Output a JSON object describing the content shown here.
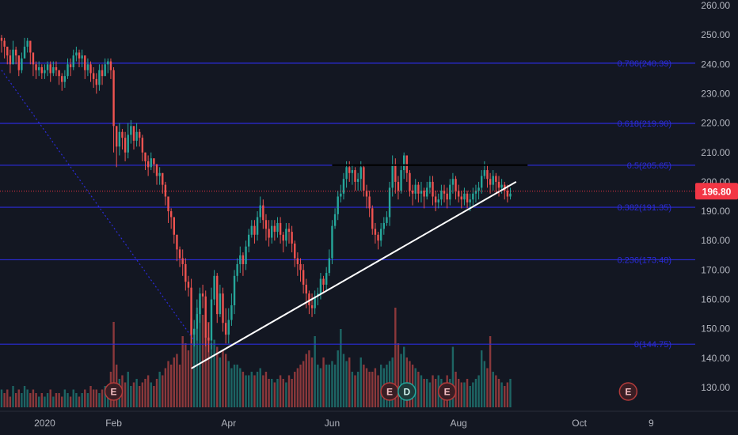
{
  "chart_data": {
    "type": "candlestick",
    "y_axis": {
      "ticks": [
        "260.00",
        "250.00",
        "240.00",
        "230.00",
        "220.00",
        "210.00",
        "200.00",
        "190.00",
        "180.00",
        "170.00",
        "160.00",
        "150.00",
        "140.00",
        "130.00"
      ],
      "range": [
        125,
        263
      ]
    },
    "x_axis": {
      "labels": [
        {
          "text": "2020",
          "bar": 15
        },
        {
          "text": "Feb",
          "bar": 39
        },
        {
          "text": "Apr",
          "bar": 79
        },
        {
          "text": "Jun",
          "bar": 115
        },
        {
          "text": "Aug",
          "bar": 159
        },
        {
          "text": "Oct",
          "bar": 201
        },
        {
          "text": "9",
          "bar": 226
        }
      ]
    },
    "last_price": "196.80",
    "last_price_value": 196.8,
    "fib_levels": [
      {
        "label": "0.786(240.39)",
        "value": 240.39
      },
      {
        "label": "0.618(219.90)",
        "value": 219.9
      },
      {
        "label": "0.5(205.65)",
        "value": 205.65
      },
      {
        "label": "0.382(191.35)",
        "value": 191.35
      },
      {
        "label": "0.236(173.48)",
        "value": 173.48
      },
      {
        "label": "0(144.75)",
        "value": 144.75
      }
    ],
    "earnings_markers": [
      {
        "text": "E",
        "kind": "earnings",
        "bar": 39
      },
      {
        "text": "E",
        "kind": "earnings",
        "bar": 135
      },
      {
        "text": "D",
        "kind": "dividend",
        "bar": 141
      },
      {
        "text": "E",
        "kind": "earnings",
        "bar": 155
      },
      {
        "text": "E",
        "kind": "earnings",
        "bar": 218
      }
    ],
    "trendline": {
      "start": {
        "bar": 66,
        "price": 136.5
      },
      "end": {
        "bar": 179,
        "price": 200.0
      }
    },
    "resistance_line": {
      "start": {
        "bar": 115,
        "price": 205.7
      },
      "end": {
        "bar": 183,
        "price": 205.7
      }
    },
    "dotted_line": {
      "start": {
        "bar": 0,
        "price": 238
      },
      "end": {
        "bar": 67,
        "price": 146
      }
    },
    "colors": {
      "background": "#131722",
      "up": "#26a69a",
      "down": "#ef5350",
      "fib": "#2b2bd9",
      "price_tag": "#f23645",
      "axis_text": "#b2b5be",
      "trendline": "#ffffff",
      "resistance": "#000000"
    },
    "closes": [
      248,
      246,
      243,
      240,
      245,
      243,
      238,
      242,
      246,
      248,
      244,
      240,
      238,
      239,
      237,
      238,
      240,
      237,
      239,
      238,
      236,
      234,
      236,
      240,
      239,
      243,
      244,
      242,
      243,
      238,
      240,
      237,
      235,
      233,
      238,
      236,
      240,
      241,
      238,
      219,
      212,
      217,
      215,
      210,
      216,
      219,
      214,
      217,
      215,
      210,
      207,
      205,
      208,
      206,
      202,
      203,
      199,
      195,
      190,
      188,
      182,
      177,
      174,
      172,
      166,
      164,
      148,
      150,
      155,
      162,
      161,
      147,
      146,
      160,
      168,
      155,
      162,
      152,
      148,
      153,
      158,
      168,
      172,
      175,
      172,
      178,
      182,
      185,
      182,
      188,
      192,
      187,
      184,
      181,
      185,
      183,
      186,
      182,
      180,
      184,
      183,
      179,
      174,
      172,
      170,
      165,
      162,
      158,
      157,
      161,
      162,
      167,
      165,
      169,
      174,
      185,
      189,
      195,
      196,
      201,
      205,
      203,
      204,
      200,
      201,
      205,
      197,
      195,
      191,
      184,
      182,
      180,
      184,
      186,
      188,
      198,
      206,
      200,
      197,
      204,
      209,
      203,
      197,
      196,
      199,
      196,
      197,
      195,
      198,
      200,
      195,
      193,
      194,
      197,
      196,
      194,
      199,
      201,
      197,
      195,
      194,
      196,
      193,
      194,
      196,
      197,
      198,
      202,
      204,
      201,
      199,
      202,
      200,
      198,
      199,
      197,
      195,
      196
    ],
    "highs": [
      250,
      249,
      246,
      245,
      248,
      246,
      243,
      244,
      249,
      249,
      247,
      242,
      241,
      241,
      240,
      240,
      241,
      241,
      241,
      241,
      238,
      237,
      238,
      242,
      242,
      245,
      246,
      245,
      245,
      243,
      242,
      241,
      239,
      237,
      240,
      240,
      242,
      242,
      242,
      239,
      215,
      220,
      218,
      217,
      220,
      221,
      219,
      220,
      218,
      216,
      210,
      209,
      210,
      208,
      206,
      205,
      203,
      200,
      195,
      191,
      187,
      180,
      178,
      177,
      174,
      168,
      167,
      153,
      160,
      164,
      165,
      163,
      152,
      164,
      170,
      169,
      165,
      164,
      157,
      157,
      162,
      170,
      174,
      178,
      176,
      180,
      184,
      187,
      187,
      190,
      195,
      194,
      189,
      187,
      187,
      187,
      188,
      188,
      183,
      186,
      186,
      185,
      180,
      176,
      174,
      172,
      167,
      163,
      162,
      163,
      164,
      169,
      168,
      171,
      177,
      187,
      191,
      197,
      199,
      203,
      207,
      207,
      206,
      205,
      203,
      207,
      206,
      199,
      197,
      192,
      186,
      183,
      186,
      188,
      190,
      200,
      209,
      208,
      202,
      206,
      210,
      209,
      204,
      199,
      201,
      200,
      200,
      198,
      200,
      202,
      202,
      197,
      196,
      199,
      199,
      198,
      201,
      203,
      202,
      199,
      197,
      198,
      197,
      196,
      198,
      199,
      200,
      204,
      207,
      206,
      203,
      204,
      203,
      202,
      201,
      200,
      199,
      198
    ],
    "lows": [
      244,
      242,
      240,
      237,
      240,
      240,
      236,
      237,
      243,
      244,
      240,
      236,
      235,
      236,
      235,
      235,
      236,
      234,
      236,
      236,
      233,
      231,
      232,
      235,
      236,
      238,
      241,
      239,
      239,
      235,
      236,
      234,
      232,
      230,
      231,
      233,
      236,
      237,
      235,
      210,
      205,
      209,
      211,
      207,
      208,
      213,
      211,
      212,
      212,
      207,
      204,
      202,
      204,
      203,
      199,
      199,
      196,
      192,
      186,
      184,
      179,
      173,
      171,
      168,
      163,
      161,
      145,
      144,
      146,
      152,
      157,
      144,
      142,
      143,
      158,
      152,
      154,
      149,
      145,
      145,
      151,
      155,
      166,
      169,
      168,
      170,
      176,
      181,
      179,
      180,
      186,
      184,
      180,
      178,
      179,
      180,
      181,
      179,
      176,
      178,
      179,
      176,
      171,
      168,
      166,
      162,
      157,
      155,
      154,
      155,
      158,
      160,
      162,
      163,
      168,
      172,
      184,
      187,
      193,
      194,
      198,
      200,
      199,
      197,
      197,
      197,
      195,
      191,
      188,
      182,
      179,
      177,
      178,
      182,
      185,
      185,
      195,
      196,
      194,
      196,
      201,
      200,
      195,
      192,
      194,
      193,
      193,
      191,
      194,
      196,
      192,
      190,
      191,
      192,
      193,
      191,
      192,
      196,
      194,
      193,
      191,
      192,
      191,
      190,
      192,
      193,
      194,
      196,
      201,
      198,
      196,
      197,
      196,
      195,
      196,
      194,
      193,
      194
    ],
    "volumes": [
      5,
      4,
      5,
      3,
      6,
      4,
      5,
      4,
      6,
      5,
      4,
      5,
      4,
      3,
      4,
      3,
      4,
      5,
      3,
      4,
      4,
      3,
      5,
      4,
      3,
      5,
      4,
      3,
      4,
      5,
      4,
      6,
      5,
      5,
      4,
      5,
      6,
      4,
      10,
      24,
      12,
      8,
      9,
      7,
      10,
      6,
      7,
      8,
      6,
      7,
      8,
      9,
      7,
      6,
      8,
      10,
      9,
      11,
      13,
      12,
      14,
      15,
      12,
      20,
      18,
      16,
      25,
      22,
      28,
      30,
      26,
      20,
      24,
      18,
      19,
      17,
      14,
      16,
      15,
      13,
      11,
      12,
      12,
      11,
      10,
      9,
      9,
      10,
      9,
      10,
      11,
      9,
      10,
      8,
      8,
      7,
      8,
      9,
      8,
      7,
      9,
      8,
      10,
      11,
      12,
      13,
      15,
      16,
      14,
      20,
      12,
      11,
      14,
      12,
      12,
      13,
      12,
      16,
      22,
      15,
      13,
      14,
      10,
      9,
      10,
      14,
      12,
      11,
      10,
      10,
      11,
      9,
      12,
      11,
      12,
      13,
      14,
      28,
      18,
      15,
      17,
      14,
      13,
      12,
      11,
      10,
      9,
      8,
      8,
      7,
      9,
      8,
      9,
      8,
      7,
      9,
      8,
      17,
      10,
      8,
      7,
      7,
      8,
      6,
      7,
      8,
      9,
      16,
      13,
      11,
      20,
      10,
      9,
      8,
      7,
      6,
      7,
      8
    ]
  }
}
